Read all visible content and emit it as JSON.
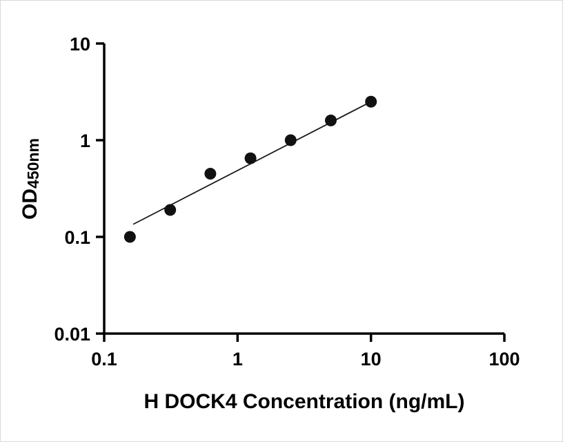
{
  "chart_data": {
    "type": "scatter",
    "title": "",
    "xlabel": "H DOCK4 Concentration (ng/mL)",
    "ylabel_main": "OD",
    "ylabel_sub": "450nm",
    "x_scale": "log",
    "y_scale": "log",
    "xlim": [
      0.1,
      100
    ],
    "ylim": [
      0.01,
      10
    ],
    "x_ticks": [
      0.1,
      1,
      10,
      100
    ],
    "x_tick_labels": [
      "0.1",
      "1",
      "10",
      "100"
    ],
    "y_ticks": [
      0.01,
      0.1,
      1,
      10
    ],
    "y_tick_labels": [
      "0.01",
      "0.1",
      "1",
      "10"
    ],
    "grid": false,
    "legend": null,
    "marker_color": "#111111",
    "line_color": "#1a1a1a",
    "axis_color": "#000000",
    "points": {
      "x": [
        0.156,
        0.3125,
        0.625,
        1.25,
        2.5,
        5,
        10
      ],
      "y": [
        0.1,
        0.19,
        0.45,
        0.65,
        1.0,
        1.6,
        2.5
      ]
    },
    "fit_line": {
      "x1": 0.165,
      "y1": 0.135,
      "x2": 10,
      "y2": 2.5
    }
  }
}
